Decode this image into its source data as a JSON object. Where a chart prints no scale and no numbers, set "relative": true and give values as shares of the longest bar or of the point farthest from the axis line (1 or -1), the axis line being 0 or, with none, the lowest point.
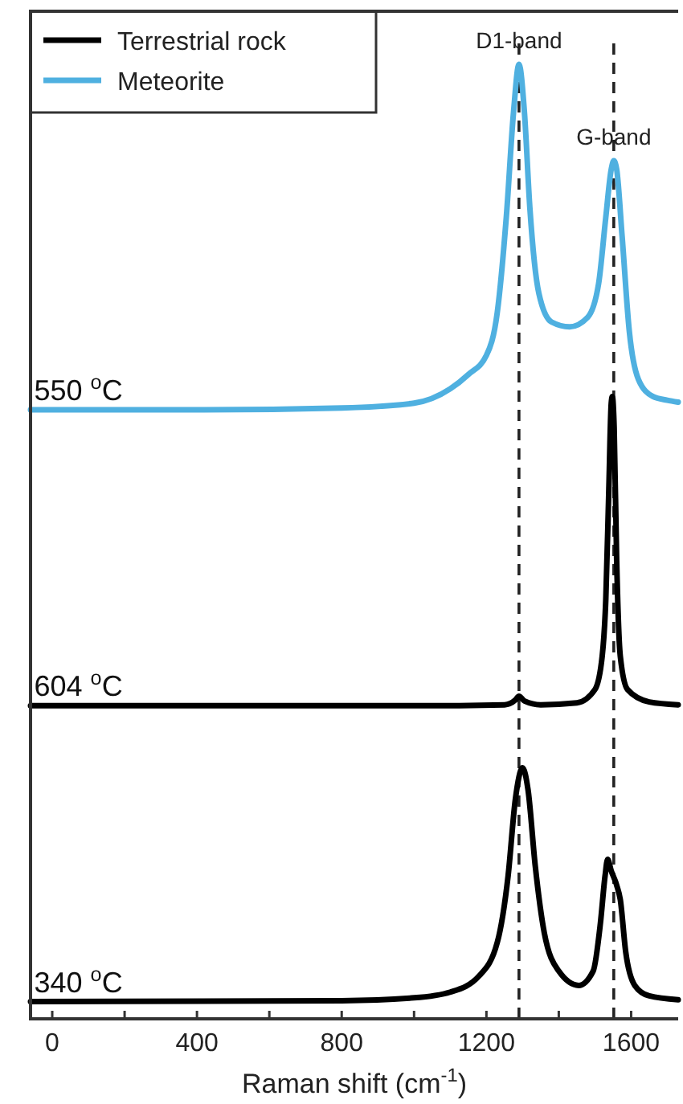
{
  "chart_data": {
    "type": "line",
    "relative": true,
    "xlabel": "Raman shift (cm$^{-1}$)",
    "xlim": [
      -60,
      1730
    ],
    "xticks": [
      0,
      {
        "value": 200,
        "label": null
      },
      400,
      {
        "value": 600,
        "label": null
      },
      800,
      {
        "value": 1000,
        "label": null
      },
      1200,
      {
        "value": 1400,
        "label": null
      },
      1600
    ],
    "legend": "top left",
    "grid": false,
    "line_style": "solid",
    "marker": "none",
    "ref_lines": [
      {
        "axis": "x",
        "value": 1290,
        "line_style": "dashed",
        "color": "#222222"
      },
      {
        "axis": "x",
        "value": 1552,
        "line_style": "dashed",
        "color": "#222222"
      }
    ],
    "annotations": [
      {
        "text": "D1-band",
        "x": 1290,
        "y": 1.0
      },
      {
        "text": "G-band",
        "x": 1552,
        "y": 0.899
      },
      {
        "text": "550 $^{o}$C",
        "x": -50,
        "y": 0.638
      },
      {
        "text": "604 $^{o}$C",
        "x": -50,
        "y": 0.328
      },
      {
        "text": "340 $^{o}$C",
        "x": -50,
        "y": 0.018
      }
    ],
    "series": [
      {
        "name": "Terrestrial rock",
        "color": "#000000",
        "x": [
          -60,
          1000,
          1250,
          1280,
          1290,
          1305,
          1350,
          1450,
          1500,
          1520,
          1530,
          1538,
          1545,
          1548,
          1553,
          1560,
          1570,
          1590,
          1650,
          1730
        ],
        "values": [
          0.328,
          0.328,
          0.329,
          0.334,
          0.338,
          0.333,
          0.329,
          0.331,
          0.345,
          0.38,
          0.44,
          0.55,
          0.645,
          0.652,
          0.62,
          0.48,
          0.38,
          0.345,
          0.332,
          0.329
        ]
      },
      {
        "color": "#000000",
        "x": [
          -60,
          800,
          1000,
          1100,
          1180,
          1230,
          1260,
          1280,
          1300,
          1315,
          1335,
          1360,
          1400,
          1455,
          1495,
          1515,
          1528,
          1535,
          1545,
          1560,
          1570,
          1585,
          1610,
          1650,
          1730
        ],
        "values": [
          0.018,
          0.019,
          0.022,
          0.028,
          0.045,
          0.08,
          0.15,
          0.23,
          0.263,
          0.24,
          0.16,
          0.09,
          0.05,
          0.035,
          0.05,
          0.1,
          0.15,
          0.167,
          0.155,
          0.14,
          0.125,
          0.07,
          0.035,
          0.024,
          0.02
        ]
      },
      {
        "name": "Meteorite",
        "color": "#4fb0e0",
        "x": [
          -60,
          400,
          800,
          1000,
          1100,
          1150,
          1200,
          1230,
          1255,
          1275,
          1290,
          1305,
          1320,
          1345,
          1380,
          1430,
          1480,
          1510,
          1530,
          1545,
          1552,
          1560,
          1575,
          1595,
          1620,
          1660,
          1700,
          1730
        ],
        "values": [
          0.638,
          0.638,
          0.64,
          0.645,
          0.66,
          0.675,
          0.695,
          0.74,
          0.84,
          0.95,
          1.0,
          0.95,
          0.85,
          0.76,
          0.73,
          0.725,
          0.735,
          0.77,
          0.84,
          0.89,
          0.899,
          0.89,
          0.82,
          0.72,
          0.67,
          0.652,
          0.648,
          0.646
        ]
      }
    ]
  }
}
